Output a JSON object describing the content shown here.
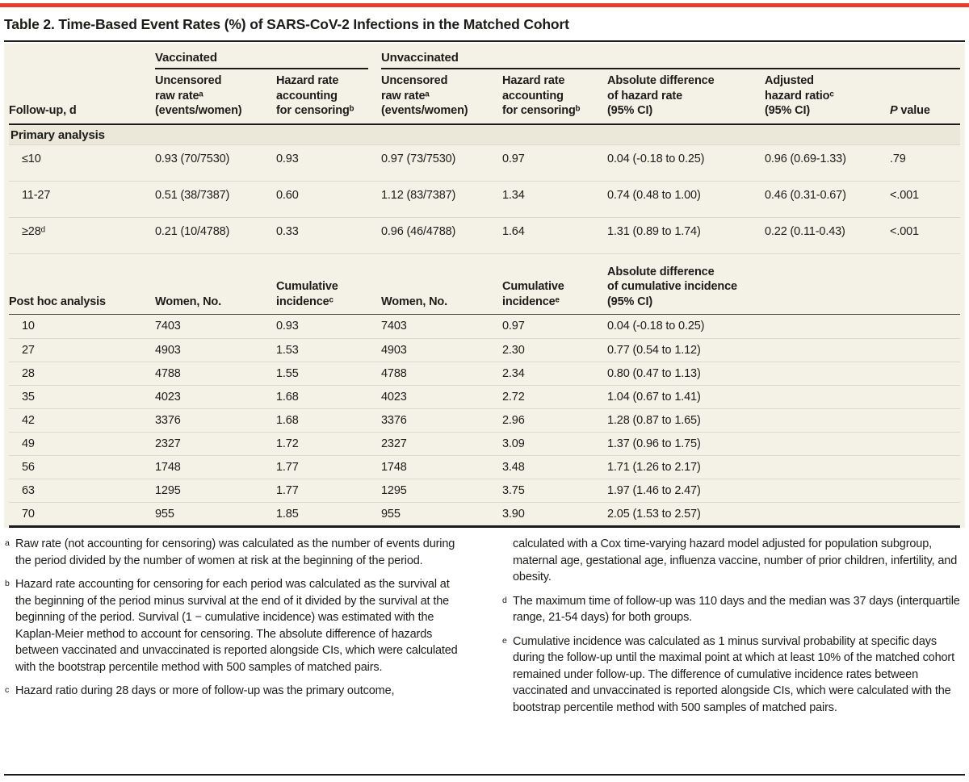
{
  "title": "Table 2. Time-Based Event Rates (%) of SARS-CoV-2 Infections in the Matched Cohort",
  "colors": {
    "accent_red": "#e83a2d",
    "table_bg": "#f4f1e6",
    "section_row_bg": "#ebe8d9",
    "rule_dark": "#1c1b17",
    "row_divider": "#dcd9ca"
  },
  "primary": {
    "spanners": {
      "vaccinated": "Vaccinated",
      "unvaccinated": "Unvaccinated"
    },
    "headers": {
      "followup": "Follow-up, d",
      "vacc_raw": "Uncensored\nraw rateᵃ\n(events/women)",
      "vacc_hazard": "Hazard rate\naccounting\nfor censoringᵇ",
      "unvacc_raw": "Uncensored\nraw rateᵃ\n(events/women)",
      "unvacc_hazard": "Hazard rate\naccounting\nfor censoringᵇ",
      "abs_diff": "Absolute difference\nof hazard rate\n(95% CI)",
      "adj_hr": "Adjusted\nhazard ratioᶜ\n(95% CI)",
      "p_italic": "P",
      "p_rest": "value"
    },
    "section_label": "Primary analysis",
    "rows": [
      {
        "cells": [
          "≤10",
          "0.93 (70/7530)",
          "0.93",
          "0.97 (73/7530)",
          "0.97",
          "0.04 (-0.18 to 0.25)",
          "0.96 (0.69-1.33)",
          ".79"
        ]
      },
      {
        "cells": [
          "11-27",
          "0.51 (38/7387)",
          "0.60",
          "1.12 (83/7387)",
          "1.34",
          "0.74 (0.48 to 1.00)",
          "0.46 (0.31-0.67)",
          "<.001"
        ]
      },
      {
        "cells": [
          "≥28ᵈ",
          "0.21 (10/4788)",
          "0.33",
          "0.96 (46/4788)",
          "1.64",
          "1.31 (0.89 to 1.74)",
          "0.22 (0.11-0.43)",
          "<.001"
        ]
      }
    ]
  },
  "posthoc": {
    "headers": {
      "label": "Post hoc analysis",
      "vacc_women": "Women, No.",
      "vacc_cuminc": "Cumulative\nincidenceᶜ",
      "unvacc_women": "Women, No.",
      "unvacc_cuminc": "Cumulative\nincidenceᵉ",
      "abs_diff": "Absolute difference\nof cumulative incidence\n(95% CI)"
    },
    "rows": [
      {
        "cells": [
          "10",
          "7403",
          "0.93",
          "7403",
          "0.97",
          "0.04 (-0.18 to 0.25)"
        ]
      },
      {
        "cells": [
          "27",
          "4903",
          "1.53",
          "4903",
          "2.30",
          "0.77 (0.54 to 1.12)"
        ]
      },
      {
        "cells": [
          "28",
          "4788",
          "1.55",
          "4788",
          "2.34",
          "0.80 (0.47 to 1.13)"
        ]
      },
      {
        "cells": [
          "35",
          "4023",
          "1.68",
          "4023",
          "2.72",
          "1.04 (0.67 to 1.41)"
        ]
      },
      {
        "cells": [
          "42",
          "3376",
          "1.68",
          "3376",
          "2.96",
          "1.28 (0.87 to 1.65)"
        ]
      },
      {
        "cells": [
          "49",
          "2327",
          "1.72",
          "2327",
          "3.09",
          "1.37 (0.96 to 1.75)"
        ]
      },
      {
        "cells": [
          "56",
          "1748",
          "1.77",
          "1748",
          "3.48",
          "1.71 (1.26 to 2.17)"
        ]
      },
      {
        "cells": [
          "63",
          "1295",
          "1.77",
          "1295",
          "3.75",
          "1.97 (1.46 to 2.47)"
        ]
      },
      {
        "cells": [
          "70",
          "955",
          "1.85",
          "955",
          "3.90",
          "2.05 (1.53 to 2.57)"
        ]
      }
    ]
  },
  "footnotes": {
    "left": [
      {
        "marker": "a",
        "text": "Raw rate (not accounting for censoring) was calculated as the number of events during the period divided by the number of women at risk at the beginning of the period."
      },
      {
        "marker": "b",
        "text": "Hazard rate accounting for censoring for each period was calculated as the survival at the beginning of the period minus survival at the end of it divided by the survival at the beginning of the period. Survival (1 − cumulative incidence) was estimated with the Kaplan-Meier method to account for censoring. The absolute difference of hazards between vaccinated and unvaccinated is reported alongside CIs, which were calculated with the bootstrap percentile method with 500 samples of matched pairs."
      },
      {
        "marker": "c",
        "text": "Hazard ratio during 28 days or more of follow-up was the primary outcome,"
      }
    ],
    "right": [
      {
        "marker": "",
        "text": "calculated with a Cox time-varying hazard model adjusted for population subgroup, maternal age, gestational age, influenza vaccine, number of prior children, infertility, and obesity."
      },
      {
        "marker": "d",
        "text": "The maximum time of follow-up was 110 days and the median was 37 days (interquartile range, 21-54 days) for both groups."
      },
      {
        "marker": "e",
        "text": "Cumulative incidence was calculated as 1 minus survival probability at specific days during the follow-up until the maximal point at which at least 10% of the matched cohort remained under follow-up. The difference of cumulative incidence rates between vaccinated and unvaccinated is reported alongside CIs, which were calculated with the bootstrap percentile method with 500 samples of matched pairs."
      }
    ]
  }
}
